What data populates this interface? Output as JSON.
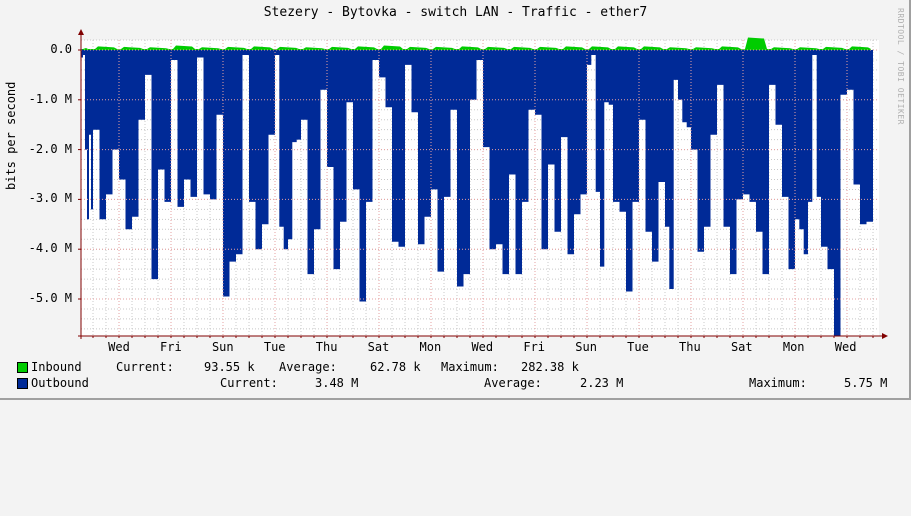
{
  "title": "Stezery - Bytovka - switch LAN - Traffic - ether7",
  "watermark": "RRDTOOL / TOBI OETIKER",
  "y_axis_label": "bits per second",
  "y_ticks": [
    "0.0",
    "-1.0 M",
    "-2.0 M",
    "-3.0 M",
    "-4.0 M",
    "-5.0 M"
  ],
  "x_ticks": [
    "Wed",
    "Fri",
    "Sun",
    "Tue",
    "Thu",
    "Sat",
    "Mon",
    "Wed",
    "Fri",
    "Sun",
    "Tue",
    "Thu",
    "Sat",
    "Mon",
    "Wed"
  ],
  "colors": {
    "inbound": "#00cc00",
    "outbound": "#002a97",
    "grid_major": "#e5a0a0",
    "grid_minor": "#c8c8c8",
    "axis": "#800000",
    "background": "#f3f3f3",
    "plot_background": "#ffffff"
  },
  "legend": {
    "inbound": {
      "label": "Inbound",
      "current_label": "Current:",
      "current": "93.55 k",
      "average_label": "Average:",
      "average": "62.78 k",
      "maximum_label": "Maximum:",
      "maximum": "282.38 k"
    },
    "outbound": {
      "label": "Outbound",
      "current_label": "Current:",
      "current": "3.48 M",
      "average_label": "Average:",
      "average": "2.23 M",
      "maximum_label": "Maximum:",
      "maximum": "5.75 M"
    }
  },
  "chart_data": {
    "type": "area",
    "title": "Stezery - Bytovka - switch LAN - Traffic - ether7",
    "xlabel": "",
    "ylabel": "bits per second",
    "ylim": [
      -5.75,
      0.3
    ],
    "units": "Mbit/s (outbound plotted negative)",
    "grid": true,
    "legend_position": "bottom",
    "categories": [
      "Mon",
      "Tue",
      "Wed",
      "Thu",
      "Fri",
      "Sat",
      "Sun",
      "Mon",
      "Tue",
      "Wed",
      "Thu",
      "Fri",
      "Sat",
      "Sun",
      "Mon",
      "Tue",
      "Wed",
      "Thu",
      "Fri",
      "Sat",
      "Sun",
      "Mon",
      "Tue",
      "Wed",
      "Thu",
      "Fri",
      "Sat",
      "Sun",
      "Mon",
      "Tue",
      "Wed"
    ],
    "series": [
      {
        "name": "Inbound",
        "values": [
          0.02,
          0.08,
          0.07,
          0.06,
          0.1,
          0.06,
          0.07,
          0.08,
          0.07,
          0.06,
          0.07,
          0.08,
          0.1,
          0.07,
          0.07,
          0.08,
          0.07,
          0.07,
          0.07,
          0.08,
          0.08,
          0.08,
          0.08,
          0.06,
          0.06,
          0.08,
          0.28,
          0.06,
          0.06,
          0.07,
          0.08
        ]
      },
      {
        "name": "Outbound",
        "values": [
          -2.5,
          -3.4,
          -3.4,
          -3.6,
          -4.6,
          -3.05,
          -3.15,
          -2.9,
          -4.95,
          -3.6,
          -3.95,
          -4.5,
          -4.4,
          -5.05,
          -4.0,
          -3.9,
          -4.75,
          -4.5,
          -3.65,
          -4.15,
          -4.3,
          -4.85,
          -4.1,
          -4.5,
          -4.05,
          -4.5,
          -3.65,
          -4.05,
          -3.95,
          -5.75,
          -3.5
        ]
      }
    ]
  },
  "outbound_shapes": [
    [
      [
        -0.15,
        -0.1
      ],
      [
        -2.0,
        -3.4
      ],
      [
        -1.7,
        -3.2
      ]
    ],
    [
      [
        -1.6,
        -3.4
      ],
      [
        -2.9,
        -2.0
      ]
    ],
    [
      [
        -2.6,
        -3.6
      ],
      [
        -3.35,
        -1.4
      ]
    ],
    [
      [
        -0.5,
        -4.6
      ],
      [
        -2.4,
        -3.05
      ]
    ],
    [
      [
        -0.2,
        -3.15
      ],
      [
        -2.6,
        -2.95
      ]
    ],
    [
      [
        -0.15,
        -2.9
      ],
      [
        -3.0,
        -1.3
      ]
    ],
    [
      [
        -4.95,
        -4.25
      ],
      [
        -4.1,
        -0.1
      ]
    ],
    [
      [
        -3.05,
        -4.0
      ],
      [
        -3.5,
        -1.7
      ]
    ],
    [
      [
        -0.1,
        -3.55
      ],
      [
        -4.0,
        -3.8
      ],
      [
        -1.85,
        -1.8
      ]
    ],
    [
      [
        -1.4,
        -4.5
      ],
      [
        -3.6,
        -0.8
      ]
    ],
    [
      [
        -2.35,
        -4.4
      ],
      [
        -3.45,
        -1.05
      ]
    ],
    [
      [
        -2.8,
        -5.05
      ],
      [
        -3.05,
        -0.2
      ]
    ],
    [
      [
        -0.55,
        -1.15
      ],
      [
        -3.85,
        -3.95
      ]
    ],
    [
      [
        -0.3,
        -1.25
      ],
      [
        -3.9,
        -3.35
      ]
    ],
    [
      [
        -2.8,
        -4.45
      ],
      [
        -2.95,
        -1.2
      ]
    ],
    [
      [
        -4.75,
        -4.5
      ],
      [
        -1.0,
        -0.2
      ]
    ],
    [
      [
        -1.95,
        -4.0
      ],
      [
        -3.9,
        -4.5
      ]
    ],
    [
      [
        -2.5,
        -4.5
      ],
      [
        -3.05,
        -1.2
      ]
    ],
    [
      [
        -1.3,
        -4.0
      ],
      [
        -2.3,
        -3.65
      ]
    ],
    [
      [
        -1.75,
        -4.1
      ],
      [
        -3.3,
        -2.9
      ]
    ],
    [
      [
        -0.3,
        -0.1
      ],
      [
        -2.85,
        -4.35
      ],
      [
        -1.05,
        -1.1
      ]
    ],
    [
      [
        -3.05,
        -3.25
      ],
      [
        -4.85,
        -3.05
      ]
    ],
    [
      [
        -1.4,
        -3.65
      ],
      [
        -4.25,
        -2.65
      ]
    ],
    [
      [
        -3.55,
        -4.8
      ],
      [
        -0.6,
        -1.0
      ],
      [
        -1.45,
        -1.55
      ]
    ],
    [
      [
        -2.0,
        -4.05
      ],
      [
        -3.55,
        -1.7
      ]
    ],
    [
      [
        -0.7,
        -3.55
      ],
      [
        -4.5,
        -3.0
      ]
    ],
    [
      [
        -2.9,
        -3.05
      ],
      [
        -3.65,
        -4.5
      ]
    ],
    [
      [
        -0.7,
        -1.5
      ],
      [
        -2.95,
        -4.4
      ]
    ],
    [
      [
        -3.4,
        -3.6
      ],
      [
        -4.1,
        -3.05
      ],
      [
        -0.1,
        -2.95
      ]
    ],
    [
      [
        -3.95,
        -4.4
      ],
      [
        -5.75,
        -0.9
      ]
    ],
    [
      [
        -0.8,
        -2.7
      ],
      [
        -3.5,
        -3.45
      ]
    ]
  ]
}
